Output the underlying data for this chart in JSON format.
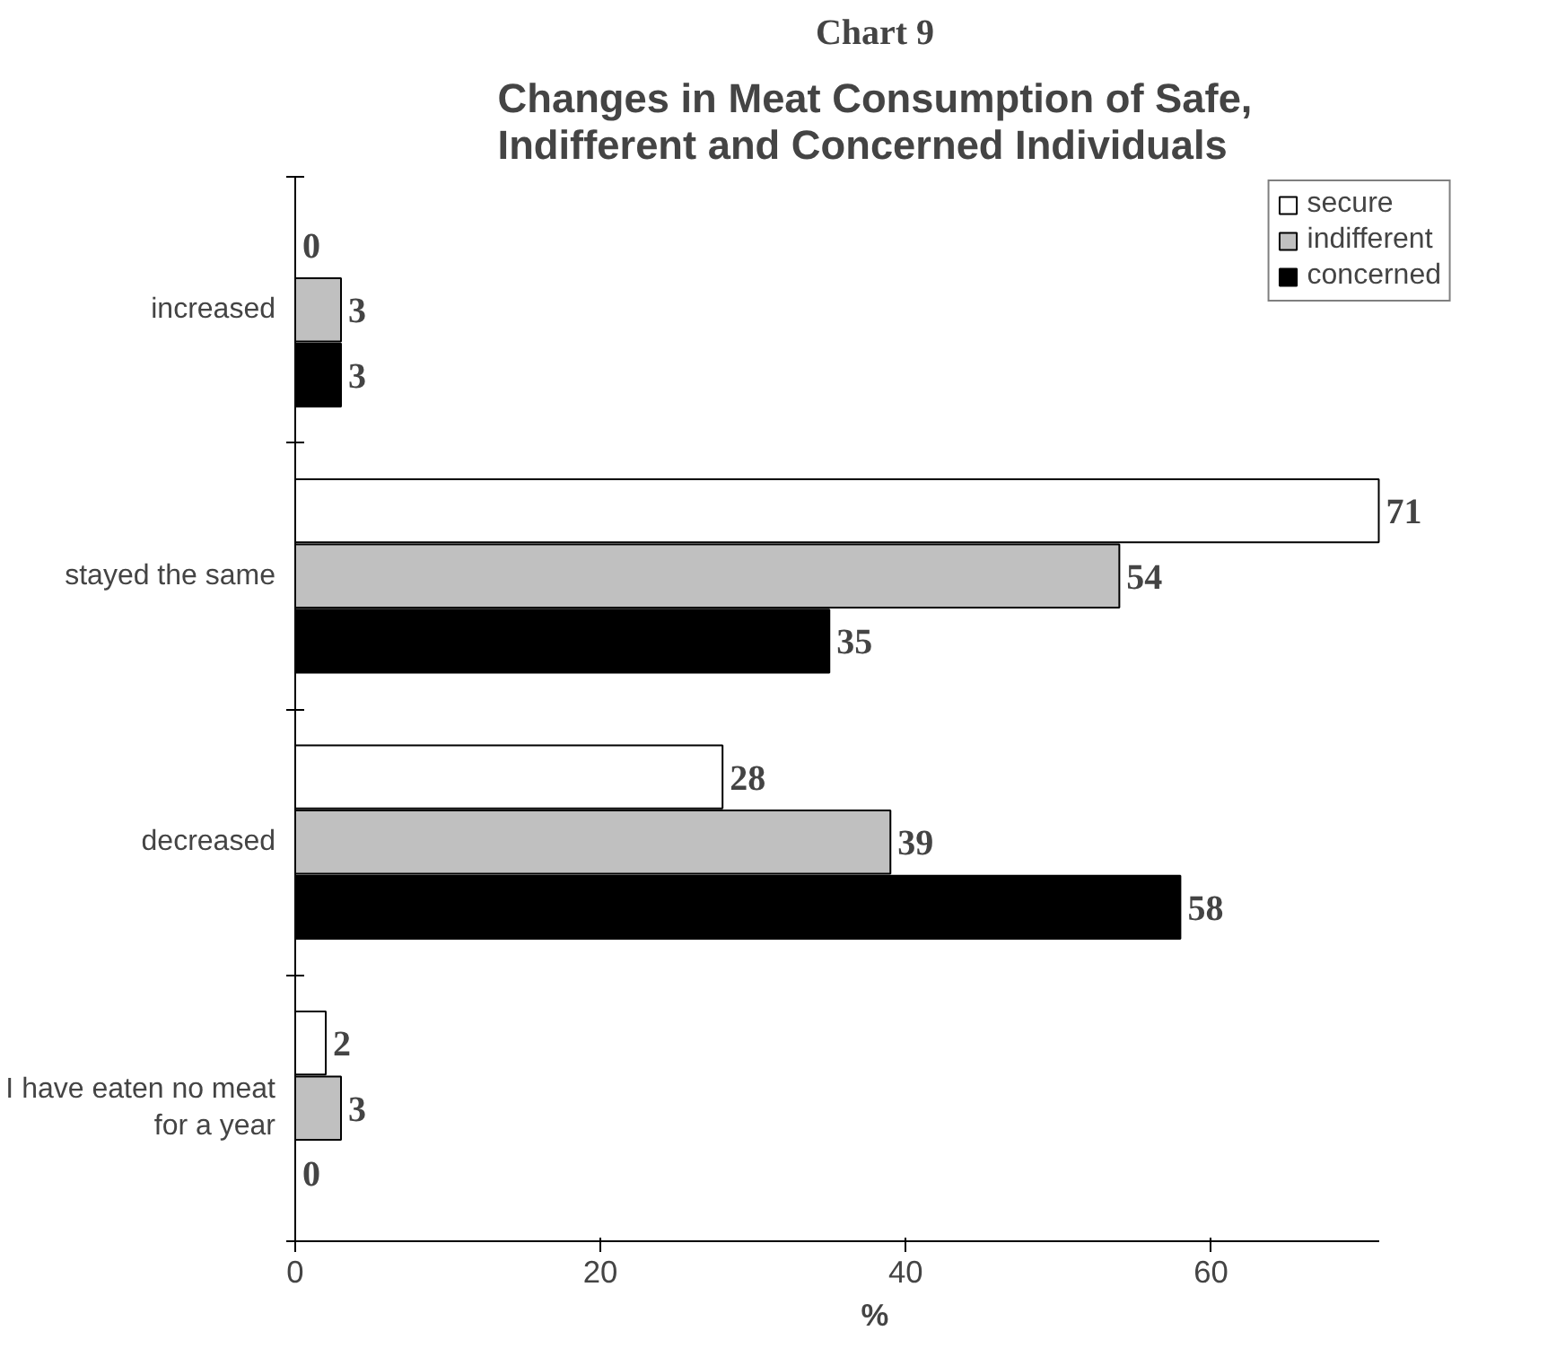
{
  "chart_data": {
    "type": "bar",
    "orientation": "horizontal",
    "title": "Chart 9",
    "subtitle": "Changes in Meat Consumption of Safe,\nIndifferent and Concerned Individuals",
    "xlabel": "%",
    "categories": [
      "increased",
      "stayed the same",
      "decreased",
      "I have eaten no meat\nfor a year"
    ],
    "series": [
      {
        "name": "secure",
        "color": "#ffffff",
        "values": [
          0,
          71,
          28,
          2
        ]
      },
      {
        "name": "indifferent",
        "color": "#c0c0c0",
        "values": [
          3,
          54,
          39,
          3
        ]
      },
      {
        "name": "concerned",
        "color": "#000000",
        "values": [
          3,
          35,
          58,
          0
        ]
      }
    ],
    "xlim": [
      0,
      71
    ],
    "xticks": [
      0,
      20,
      40,
      60
    ],
    "data_labels": true,
    "grid": false,
    "legend": "top right"
  }
}
